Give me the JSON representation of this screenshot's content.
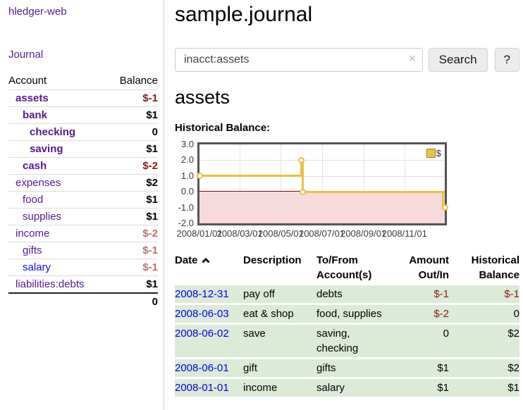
{
  "colors": {
    "link_purple": "#551A8B",
    "link_blue": "#0c0cee",
    "negative_strong": "#8b1a1a",
    "negative_soft": "#b3736e",
    "row_green": "#dcead8",
    "chart_gold": "#e8c240",
    "chart_negative_fill": "#f8dada",
    "chart_zero_line": "#8b0000"
  },
  "sidebar": {
    "brand": "hledger-web",
    "journal_link": "Journal",
    "accounts": {
      "header_account": "Account",
      "header_balance": "Balance",
      "rows": [
        {
          "name": "assets",
          "balance": "$-1",
          "depth": 1,
          "bold": true,
          "balance_style": "neg-strong"
        },
        {
          "name": "bank",
          "balance": "$1",
          "depth": 2,
          "bold": true,
          "balance_style": ""
        },
        {
          "name": "checking",
          "balance": "0",
          "depth": 3,
          "bold": true,
          "balance_style": ""
        },
        {
          "name": "saving",
          "balance": "$1",
          "depth": 3,
          "bold": true,
          "balance_style": ""
        },
        {
          "name": "cash",
          "balance": "$-2",
          "depth": 2,
          "bold": true,
          "balance_style": "neg-strong"
        },
        {
          "name": "expenses",
          "balance": "$2",
          "depth": 1,
          "bold": false,
          "balance_style": ""
        },
        {
          "name": "food",
          "balance": "$1",
          "depth": 2,
          "bold": false,
          "balance_style": ""
        },
        {
          "name": "supplies",
          "balance": "$1",
          "depth": 2,
          "bold": false,
          "balance_style": ""
        },
        {
          "name": "income",
          "balance": "$-2",
          "depth": 1,
          "bold": false,
          "balance_style": "neg-soft"
        },
        {
          "name": "gifts",
          "balance": "$-1",
          "depth": 2,
          "bold": false,
          "balance_style": "neg-soft"
        },
        {
          "name": "salary",
          "balance": "$-1",
          "depth": 2,
          "bold": false,
          "balance_style": "neg-soft",
          "link_style": "unvisited"
        },
        {
          "name": "liabilities:debts",
          "balance": "$1",
          "depth": 1,
          "bold": false,
          "balance_style": ""
        }
      ],
      "total": "0"
    }
  },
  "main": {
    "title": "sample.journal",
    "search": {
      "value": "inacct:assets",
      "clear_icon": "×",
      "search_button": "Search",
      "help_button": "?"
    },
    "account_heading": "assets",
    "chart_title": "Historical Balance:"
  },
  "chart_data": {
    "type": "line",
    "step": true,
    "series": [
      {
        "name": "$",
        "color": "#e8c240",
        "points": [
          [
            "2008-01-01",
            1
          ],
          [
            "2008-06-01",
            2
          ],
          [
            "2008-06-03",
            0
          ],
          [
            "2008-12-31",
            -1
          ]
        ]
      }
    ],
    "x_range": [
      "2008-01-01",
      "2008-12-31"
    ],
    "ylim": [
      -2,
      3
    ],
    "y_tick_labels": [
      "3.0",
      "2.0",
      "1.0",
      "0.0",
      "-1.0",
      "-2.0"
    ],
    "y_tick_values": [
      3,
      2,
      1,
      0,
      -1,
      -2
    ],
    "x_tick_labels": [
      "2008/01/01",
      "2008/03/01",
      "2008/05/01",
      "2008/07/01",
      "2008/09/01",
      "2008/11/01"
    ],
    "legend": {
      "position": "top-right",
      "label": "$"
    },
    "grid": true
  },
  "register_table": {
    "headers": [
      "Date",
      "Description",
      "To/From Account(s)",
      "Amount Out/In",
      "Historical Balance"
    ],
    "rows": [
      {
        "date": "2008-12-31",
        "description": "pay off",
        "accounts": "debts",
        "amount": "$-1",
        "balance": "$-1"
      },
      {
        "date": "2008-06-03",
        "description": "eat & shop",
        "accounts": "food, supplies",
        "amount": "$-2",
        "balance": "0"
      },
      {
        "date": "2008-06-02",
        "description": "save",
        "accounts": "saving, checking",
        "amount": "0",
        "balance": "$2"
      },
      {
        "date": "2008-06-01",
        "description": "gift",
        "accounts": "gifts",
        "amount": "$1",
        "balance": "$2"
      },
      {
        "date": "2008-01-01",
        "description": "income",
        "accounts": "salary",
        "amount": "$1",
        "balance": "$1"
      }
    ]
  }
}
